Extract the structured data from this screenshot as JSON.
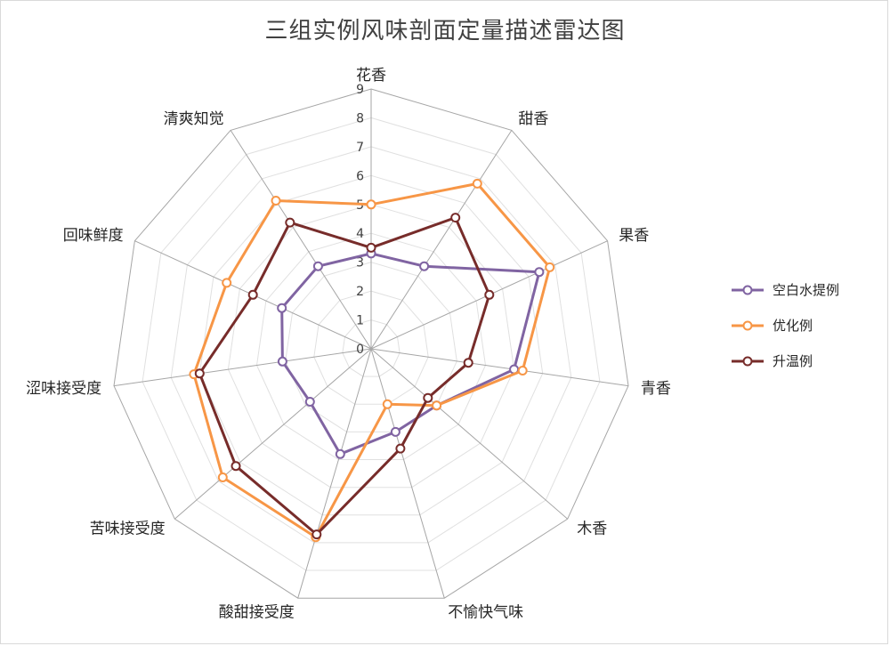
{
  "chart_data": {
    "type": "radar",
    "title": "三组实例风味剖面定量描述雷达图",
    "axes": [
      "花香",
      "甜香",
      "果香",
      "青香",
      "木香",
      "不愉快气味",
      "酸甜接受度",
      "苦味接受度",
      "涩味接受度",
      "回味鲜度",
      "清爽知觉"
    ],
    "rlim": [
      0,
      9
    ],
    "ticks": [
      0,
      1,
      2,
      3,
      4,
      5,
      6,
      7,
      8,
      9
    ],
    "grid": true,
    "legend_position": "right",
    "series": [
      {
        "name": "空白水提例",
        "color": "#8064a2",
        "values": [
          3.3,
          3.4,
          6.4,
          5.0,
          3.0,
          3.0,
          3.8,
          2.8,
          3.1,
          3.4,
          3.4
        ]
      },
      {
        "name": "优化例",
        "color": "#f79646",
        "values": [
          5.0,
          6.8,
          6.8,
          5.3,
          3.0,
          2.0,
          6.8,
          6.8,
          6.2,
          5.5,
          6.1
        ]
      },
      {
        "name": "升温例",
        "color": "#772c2a",
        "values": [
          3.5,
          5.4,
          4.5,
          3.4,
          2.6,
          3.6,
          6.7,
          6.2,
          6.0,
          4.5,
          5.2
        ]
      }
    ]
  }
}
